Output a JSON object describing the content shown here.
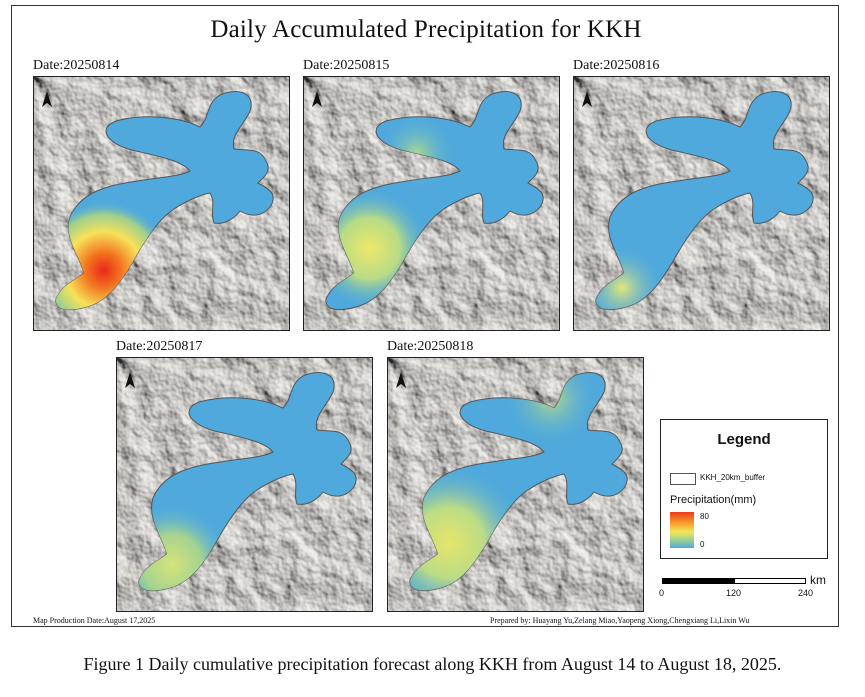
{
  "title": "Daily Accumulated Precipitation for KKH",
  "panels": [
    {
      "date_label": "Date:20250814",
      "north_arrow": "north-arrow-icon",
      "hotspot": "southwest-red"
    },
    {
      "date_label": "Date:20250815",
      "north_arrow": "north-arrow-icon",
      "hotspot": "southwest-yellow"
    },
    {
      "date_label": "Date:20250816",
      "north_arrow": "north-arrow-icon",
      "hotspot": "southwest-light"
    },
    {
      "date_label": "Date:20250817",
      "north_arrow": "north-arrow-icon",
      "hotspot": "southwest-green"
    },
    {
      "date_label": "Date:20250818",
      "north_arrow": "north-arrow-icon",
      "hotspot": "southwest-green-north-green"
    }
  ],
  "legend": {
    "title": "Legend",
    "buffer_label": "KKH_20km_buffer",
    "precip_label": "Precipitation(mm)",
    "max": "80",
    "min": "0",
    "colors": {
      "high": "#e83a1a",
      "mid": "#f2e65a",
      "low": "#4fa9dc"
    }
  },
  "scalebar": {
    "unit": "km",
    "ticks": [
      "0",
      "120",
      "240"
    ]
  },
  "footer": {
    "production_date": "Map Production Date:August 17,2025",
    "prepared_by": "Prepared by: Huayang Yu,Zelang Miao,Yaopeng Xiong,Chengxiang Li,Lixin Wu"
  },
  "caption": "Figure 1 Daily cumulative precipitation forecast along KKH from August 14 to August 18, 2025."
}
